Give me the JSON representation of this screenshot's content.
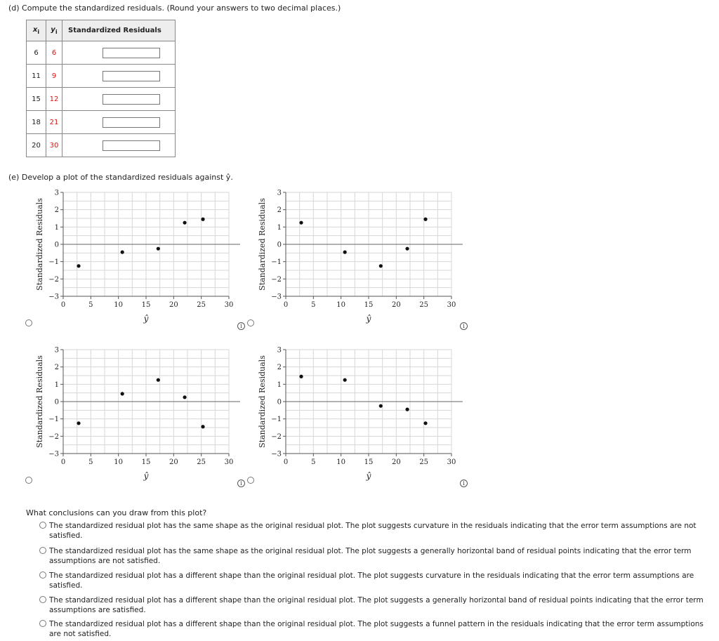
{
  "part_d": {
    "prompt": "(d)  Compute the standardized residuals. (Round your answers to two decimal places.)",
    "headers": {
      "x": "x",
      "x_sub": "i",
      "y": "y",
      "y_sub": "i",
      "std": "Standardized Residuals"
    },
    "rows": [
      {
        "x": "6",
        "y": "6"
      },
      {
        "x": "11",
        "y": "9"
      },
      {
        "x": "15",
        "y": "12"
      },
      {
        "x": "18",
        "y": "21"
      },
      {
        "x": "20",
        "y": "30"
      }
    ]
  },
  "part_e": {
    "prompt": "(e)  Develop a plot of the standardized residuals against ŷ."
  },
  "info_glyph": "i",
  "chart_data": [
    {
      "type": "scatter",
      "ylabel": "Standardized Residuals",
      "xlabel": "ŷ",
      "xlim": [
        0,
        30
      ],
      "ylim": [
        -3,
        3
      ],
      "xticks": [
        "0",
        "5",
        "10",
        "15",
        "20",
        "25",
        "30"
      ],
      "yticks": [
        "3",
        "2",
        "1",
        "0",
        "−1",
        "−2",
        "−3"
      ],
      "points": [
        [
          2.8,
          -1.25
        ],
        [
          10.7,
          -0.45
        ],
        [
          17.2,
          -0.25
        ],
        [
          22.0,
          1.25
        ],
        [
          25.3,
          1.45
        ]
      ]
    },
    {
      "type": "scatter",
      "ylabel": "Standardized Residuals",
      "xlabel": "ŷ",
      "xlim": [
        0,
        30
      ],
      "ylim": [
        -3,
        3
      ],
      "xticks": [
        "0",
        "5",
        "10",
        "15",
        "20",
        "25",
        "30"
      ],
      "yticks": [
        "3",
        "2",
        "1",
        "0",
        "−1",
        "−2",
        "−3"
      ],
      "points": [
        [
          2.8,
          1.25
        ],
        [
          10.7,
          -0.45
        ],
        [
          17.2,
          -1.25
        ],
        [
          22.0,
          -0.25
        ],
        [
          25.3,
          1.45
        ]
      ]
    },
    {
      "type": "scatter",
      "ylabel": "Standardized Residuals",
      "xlabel": "ŷ",
      "xlim": [
        0,
        30
      ],
      "ylim": [
        -3,
        3
      ],
      "xticks": [
        "0",
        "5",
        "10",
        "15",
        "20",
        "25",
        "30"
      ],
      "yticks": [
        "3",
        "2",
        "1",
        "0",
        "−1",
        "−2",
        "−3"
      ],
      "points": [
        [
          2.8,
          -1.25
        ],
        [
          10.7,
          0.45
        ],
        [
          17.2,
          1.25
        ],
        [
          22.0,
          0.25
        ],
        [
          25.3,
          -1.45
        ]
      ]
    },
    {
      "type": "scatter",
      "ylabel": "Standardized Residuals",
      "xlabel": "ŷ",
      "xlim": [
        0,
        30
      ],
      "ylim": [
        -3,
        3
      ],
      "xticks": [
        "0",
        "5",
        "10",
        "15",
        "20",
        "25",
        "30"
      ],
      "yticks": [
        "3",
        "2",
        "1",
        "0",
        "−1",
        "−2",
        "−3"
      ],
      "points": [
        [
          2.8,
          1.45
        ],
        [
          10.7,
          1.25
        ],
        [
          17.2,
          -0.25
        ],
        [
          22.0,
          -0.45
        ],
        [
          25.3,
          -1.25
        ]
      ]
    }
  ],
  "question": {
    "prompt": "What conclusions can you draw from this plot?",
    "options": [
      "The standardized residual plot has the same shape as the original residual plot. The plot suggests curvature in the residuals indicating that the error term assumptions are not satisfied.",
      "The standardized residual plot has the same shape as the original residual plot. The plot suggests a generally horizontal band of residual points indicating that the error term assumptions are not satisfied.",
      "The standardized residual plot has a different shape than the original residual plot. The plot suggests curvature in the residuals indicating that the error term assumptions are satisfied.",
      "The standardized residual plot has a different shape than the original residual plot. The plot suggests a generally horizontal band of residual points indicating that the error term assumptions are satisfied.",
      "The standardized residual plot has a different shape than the original residual plot. The plot suggests a funnel pattern in the residuals indicating that the error term assumptions are not satisfied."
    ]
  }
}
